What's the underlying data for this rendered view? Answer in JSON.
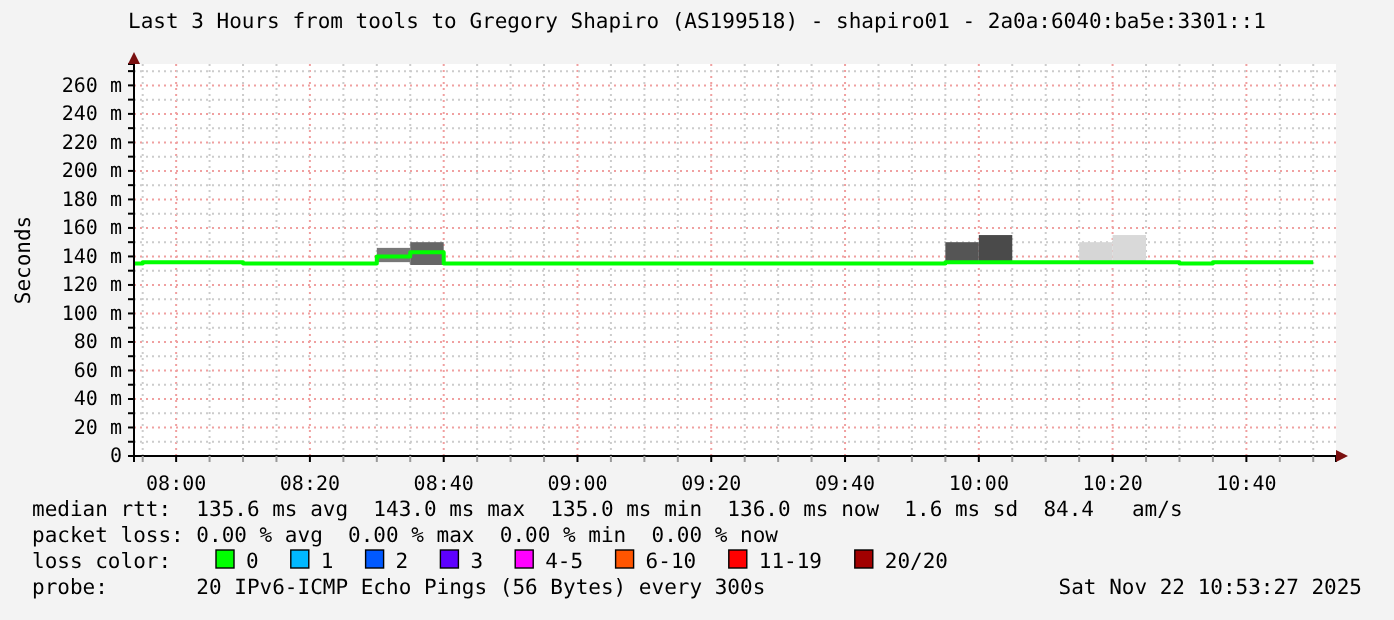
{
  "chart_data": {
    "type": "step",
    "title": "Last 3 Hours from tools to Gregory Shapiro (AS199518) - shapiro01 - 2a0a:6040:ba5e:3301::1",
    "ylabel": "Seconds",
    "legend_title": "loss color:",
    "legend": "bottom",
    "grid": true,
    "xlim": [
      7.895,
      10.89
    ],
    "ylim": [
      0,
      275
    ],
    "xticks": [
      {
        "value": 7.9167,
        "label": null
      },
      {
        "value": 8,
        "label": "08:00"
      },
      {
        "value": 8.0833,
        "label": null
      },
      {
        "value": 8.1667,
        "label": null
      },
      {
        "value": 8.25,
        "label": null
      },
      {
        "value": 8.3333,
        "label": "08:20"
      },
      {
        "value": 8.4167,
        "label": null
      },
      {
        "value": 8.5,
        "label": null
      },
      {
        "value": 8.5833,
        "label": null
      },
      {
        "value": 8.6667,
        "label": "08:40"
      },
      {
        "value": 8.75,
        "label": null
      },
      {
        "value": 8.8333,
        "label": null
      },
      {
        "value": 8.9167,
        "label": null
      },
      {
        "value": 9,
        "label": "09:00"
      },
      {
        "value": 9.0833,
        "label": null
      },
      {
        "value": 9.1667,
        "label": null
      },
      {
        "value": 9.25,
        "label": null
      },
      {
        "value": 9.3333,
        "label": "09:20"
      },
      {
        "value": 9.4167,
        "label": null
      },
      {
        "value": 9.5,
        "label": null
      },
      {
        "value": 9.5833,
        "label": null
      },
      {
        "value": 9.6667,
        "label": "09:40"
      },
      {
        "value": 9.75,
        "label": null
      },
      {
        "value": 9.8333,
        "label": null
      },
      {
        "value": 9.9167,
        "label": null
      },
      {
        "value": 10,
        "label": "10:00"
      },
      {
        "value": 10.0833,
        "label": null
      },
      {
        "value": 10.1667,
        "label": null
      },
      {
        "value": 10.25,
        "label": null
      },
      {
        "value": 10.3333,
        "label": "10:20"
      },
      {
        "value": 10.4167,
        "label": null
      },
      {
        "value": 10.5,
        "label": null
      },
      {
        "value": 10.5833,
        "label": null
      },
      {
        "value": 10.6667,
        "label": "10:40"
      },
      {
        "value": 10.75,
        "label": null
      },
      {
        "value": 10.8333,
        "label": null
      }
    ],
    "yticks": [
      0,
      {
        "value": 10,
        "label": null
      },
      {
        "value": 20,
        "label": "20 m"
      },
      {
        "value": 30,
        "label": null
      },
      {
        "value": 40,
        "label": "40 m"
      },
      {
        "value": 50,
        "label": null
      },
      {
        "value": 60,
        "label": "60 m"
      },
      {
        "value": 70,
        "label": null
      },
      {
        "value": 80,
        "label": "80 m"
      },
      {
        "value": 90,
        "label": null
      },
      {
        "value": 100,
        "label": "100 m"
      },
      {
        "value": 110,
        "label": null
      },
      {
        "value": 120,
        "label": "120 m"
      },
      {
        "value": 130,
        "label": null
      },
      {
        "value": 140,
        "label": "140 m"
      },
      {
        "value": 150,
        "label": null
      },
      {
        "value": 160,
        "label": "160 m"
      },
      {
        "value": 170,
        "label": null
      },
      {
        "value": 180,
        "label": "180 m"
      },
      {
        "value": 190,
        "label": null
      },
      {
        "value": 200,
        "label": "200 m"
      },
      {
        "value": 210,
        "label": null
      },
      {
        "value": 220,
        "label": "220 m"
      },
      {
        "value": 230,
        "label": null
      },
      {
        "value": 240,
        "label": "240 m"
      },
      {
        "value": 250,
        "label": null
      },
      {
        "value": 260,
        "label": "260 m"
      },
      {
        "value": 270,
        "label": null
      }
    ],
    "series": [
      {
        "type": "bar",
        "x": [
          8.5417,
          8.625,
          9.9583,
          10.0417,
          10.2917,
          10.375
        ],
        "base": [
          136,
          134,
          136,
          136,
          136,
          136
        ],
        "values": [
          10,
          16,
          14,
          19,
          14,
          19
        ],
        "colors": [
          "#777777",
          "#666666",
          "#555555",
          "#4a4a4a",
          "#d6d6d6",
          "#d9d9d9"
        ]
      },
      {
        "name": "0",
        "color": "#00ff00",
        "x": [
          7.895,
          7.9167,
          8.1667,
          8.5,
          8.5833,
          8.6667,
          9.9167,
          10.5,
          10.5833,
          10.8333
        ],
        "values": [
          135,
          136,
          135,
          140,
          143,
          135,
          136,
          135,
          136,
          136
        ]
      },
      {
        "name": "1",
        "color": "#00b8ff"
      },
      {
        "name": "2",
        "color": "#0059ff"
      },
      {
        "name": "3",
        "color": "#5e00ff"
      },
      {
        "name": "4-5",
        "color": "#ff00ff"
      },
      {
        "name": "6-10",
        "color": "#ff5500"
      },
      {
        "name": "11-19",
        "color": "#ff0000"
      },
      {
        "name": "20/20",
        "color": "#a10000"
      }
    ],
    "annotations": [
      "median rtt:  135.6 ms avg  143.0 ms max  135.0 ms min  136.0 ms now  1.6 ms sd  84.4   am/s",
      "packet loss: 0.00 % avg  0.00 % max  0.00 % min  0.00 % now",
      "probe:       20 IPv6-ICMP Echo Pings (56 Bytes) every 300s",
      "Sat Nov 22 10:53:27 2025"
    ]
  }
}
